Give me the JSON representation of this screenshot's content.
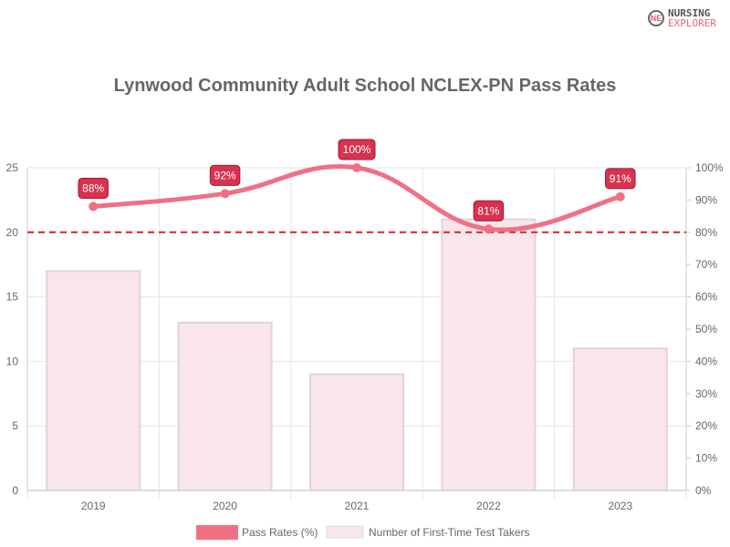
{
  "logo": {
    "line1": "NURSING",
    "line2": "EXPLORER",
    "mark": "NE"
  },
  "chart_data": {
    "type": "bar",
    "title": "Lynwood Community Adult School NCLEX-PN Pass Rates",
    "categories": [
      "2019",
      "2020",
      "2021",
      "2022",
      "2023"
    ],
    "series": [
      {
        "name": "Pass Rates (%)",
        "type": "line",
        "axis": "right",
        "values": [
          88,
          92,
          100,
          81,
          91
        ],
        "labels": [
          "88%",
          "92%",
          "100%",
          "81%",
          "91%"
        ],
        "color": "#f07083"
      },
      {
        "name": "Number of First-Time Test Takers",
        "type": "bar",
        "axis": "left",
        "values": [
          17,
          13,
          9,
          21,
          11
        ],
        "color": "#f9e6ec"
      }
    ],
    "left_axis": {
      "range": [
        0,
        25
      ],
      "ticks": [
        "0",
        "5",
        "10",
        "15",
        "20",
        "25"
      ]
    },
    "right_axis": {
      "range": [
        0,
        100
      ],
      "ticks": [
        "0%",
        "10%",
        "20%",
        "30%",
        "40%",
        "50%",
        "60%",
        "70%",
        "80%",
        "90%",
        "100%"
      ]
    },
    "threshold": {
      "value": 80,
      "axis": "right",
      "color": "#e8192c",
      "style": "dashed"
    },
    "grid": true,
    "legend": "bottom"
  }
}
